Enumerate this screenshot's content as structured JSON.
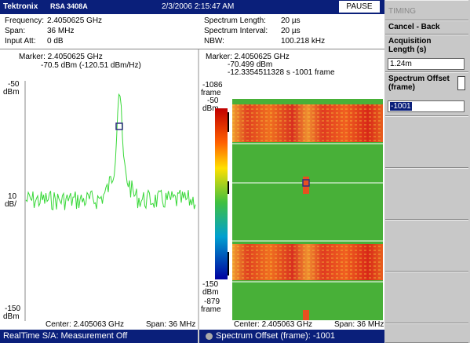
{
  "header": {
    "brand": "Tektronix",
    "model": "RSA 3408A",
    "datetime": "2/3/2006 2:15:47 AM",
    "button": "PAUSE"
  },
  "settings": {
    "left": [
      {
        "label": "Frequency:",
        "value": "2.4050625 GHz"
      },
      {
        "label": "Span:",
        "value": "36 MHz"
      },
      {
        "label": "Input Att:",
        "value": "0 dB"
      }
    ],
    "right": [
      {
        "label": "Spectrum Length:",
        "value": "20 µs"
      },
      {
        "label": "Spectrum Interval:",
        "value": "20 µs"
      },
      {
        "label": "NBW:",
        "value": "100.218 kHz"
      }
    ]
  },
  "spectrum": {
    "marker": "Marker: 2.4050625 GHz",
    "marker_level": "-70.5 dBm (-120.51 dBm/Hz)",
    "top": "-50",
    "top_unit": "dBm",
    "scale": "10",
    "scale_unit": "dB/",
    "bottom": "-150",
    "bottom_unit": "dBm",
    "center": "Center: 2.405063 GHz",
    "span": "Span: 36 MHz"
  },
  "spectrogram": {
    "marker": "Marker: 2.4050625 GHz",
    "marker_level": "-70.499 dBm",
    "marker_time": "-12.3354511328 s  -1001 frame",
    "top_frame": "-1086",
    "top_frame_unit": "frame",
    "top": "-50",
    "top_unit": "dBm",
    "bottom": "-150",
    "bottom_unit": "dBm",
    "bottom_frame": "-879",
    "bottom_frame_unit": "frame",
    "center": "Center: 2.405063 GHz",
    "span": "Span: 36 MHz"
  },
  "status": {
    "left": "RealTime S/A: Measurement Off",
    "right": "Spectrum Offset (frame): -1001"
  },
  "side_panel": {
    "title": "TIMING",
    "cancel": "Cancel - Back",
    "acq_label": "Acquisition Length (s)",
    "acq_value": "1.24m",
    "offset_label": "Spectrum Offset (frame)",
    "offset_value": "-1001"
  }
}
